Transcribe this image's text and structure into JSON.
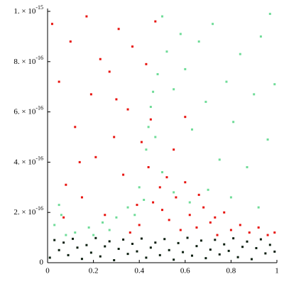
{
  "chart_data": {
    "type": "scatter",
    "xlim": [
      0,
      1
    ],
    "ylim": [
      0,
      1e-15
    ],
    "xticks": [
      0,
      0.2,
      0.4,
      0.6,
      0.8,
      1
    ],
    "yticks": [
      0,
      {
        "value": 2e-16,
        "label": "2. × 10",
        "exponent": "-16"
      },
      {
        "value": 4e-16,
        "label": "4. × 10",
        "exponent": "-16"
      },
      {
        "value": 6e-16,
        "label": "6. × 10",
        "exponent": "-16"
      },
      {
        "value": 8e-16,
        "label": "8. × 10",
        "exponent": "-16"
      },
      {
        "value": 1e-15,
        "label": "1. × 10",
        "exponent": "-15"
      }
    ],
    "series": [
      {
        "color": "#e8140f",
        "x": [
          0.02,
          0.05,
          0.08,
          0.1,
          0.12,
          0.15,
          0.17,
          0.19,
          0.21,
          0.23,
          0.25,
          0.27,
          0.29,
          0.31,
          0.33,
          0.35,
          0.37,
          0.39,
          0.41,
          0.43,
          0.45,
          0.47,
          0.49,
          0.4,
          0.36,
          0.5,
          0.53,
          0.56,
          0.58,
          0.6,
          0.62,
          0.65,
          0.68,
          0.71,
          0.74,
          0.77,
          0.8,
          0.84,
          0.88,
          0.92,
          0.96,
          0.99,
          0.55,
          0.6,
          0.07,
          0.14,
          0.3,
          0.44,
          0.46,
          0.52,
          0.66,
          0.73
        ],
        "y": [
          9.5e-16,
          7.2e-16,
          3.1e-16,
          8.8e-16,
          5.4e-16,
          2.6e-16,
          9.8e-16,
          6.7e-16,
          4.2e-16,
          8.1e-16,
          1.9e-16,
          7.6e-16,
          5e-16,
          9.3e-16,
          3.5e-16,
          6.1e-16,
          8.6e-16,
          2.3e-16,
          4.8e-16,
          7.9e-16,
          5.7e-16,
          9.6e-16,
          3e-16,
          1.5e-16,
          1.2e-16,
          2.1e-16,
          1.7e-16,
          2.6e-16,
          1.3e-16,
          3.2e-16,
          1.9e-16,
          1.4e-16,
          2.2e-16,
          1.6e-16,
          1.1e-16,
          2e-16,
          1.3e-16,
          1.5e-16,
          1.2e-16,
          1.4e-16,
          1.1e-16,
          1.2e-16,
          4.5e-16,
          5.8e-16,
          1.8e-16,
          4e-16,
          6.5e-16,
          3.8e-16,
          2.4e-16,
          3.4e-16,
          2.7e-16,
          1.8e-16
        ]
      },
      {
        "color": "#6fdc98",
        "x": [
          0.03,
          0.05,
          0.06,
          0.08,
          0.12,
          0.18,
          0.24,
          0.3,
          0.35,
          0.4,
          0.43,
          0.45,
          0.47,
          0.48,
          0.5,
          0.52,
          0.55,
          0.58,
          0.6,
          0.63,
          0.66,
          0.69,
          0.72,
          0.75,
          0.78,
          0.81,
          0.84,
          0.87,
          0.9,
          0.93,
          0.96,
          0.99,
          0.5,
          0.55,
          0.62,
          0.7,
          0.8,
          0.92,
          0.42,
          0.38,
          0.27,
          0.2,
          0.97,
          0.46,
          0.44
        ],
        "y": [
          1.5e-16,
          2.3e-16,
          1.9e-16,
          1.1e-16,
          1.2e-16,
          1.4e-16,
          1.6e-16,
          1.8e-16,
          2.2e-16,
          3e-16,
          4.5e-16,
          6.2e-16,
          5e-16,
          7.5e-16,
          9.8e-16,
          8.4e-16,
          6.9e-16,
          9.1e-16,
          7.7e-16,
          5.3e-16,
          8.8e-16,
          6.4e-16,
          9.5e-16,
          4.1e-16,
          7.2e-16,
          5.6e-16,
          8.3e-16,
          3.8e-16,
          6.7e-16,
          9e-16,
          4.9e-16,
          7.1e-16,
          3.6e-16,
          2.8e-16,
          2.4e-16,
          2.9e-16,
          2.6e-16,
          2.2e-16,
          2.5e-16,
          1.9e-16,
          1.3e-16,
          1.1e-16,
          9.9e-16,
          6.8e-16,
          5.4e-16
        ]
      },
      {
        "color": "#0c1f10",
        "x": [
          0.01,
          0.03,
          0.05,
          0.07,
          0.09,
          0.11,
          0.13,
          0.15,
          0.17,
          0.19,
          0.21,
          0.23,
          0.25,
          0.27,
          0.29,
          0.31,
          0.33,
          0.35,
          0.37,
          0.39,
          0.41,
          0.43,
          0.45,
          0.47,
          0.49,
          0.51,
          0.53,
          0.55,
          0.57,
          0.59,
          0.61,
          0.63,
          0.65,
          0.67,
          0.69,
          0.71,
          0.73,
          0.75,
          0.77,
          0.79,
          0.81,
          0.83,
          0.85,
          0.87,
          0.89,
          0.91,
          0.93,
          0.95,
          0.97,
          0.99
        ],
        "y": [
          2e-17,
          9e-17,
          5e-17,
          8e-17,
          3e-17,
          9.5e-17,
          6e-17,
          1.5e-17,
          7e-17,
          4e-17,
          9.8e-17,
          2.5e-17,
          6.5e-17,
          8.5e-17,
          1e-17,
          5.5e-17,
          9.2e-17,
          3.5e-17,
          7.5e-17,
          4.5e-17,
          9.6e-17,
          2e-17,
          6e-17,
          8e-17,
          3e-17,
          9.4e-17,
          5e-17,
          1.2e-17,
          7.8e-17,
          4.2e-17,
          9.9e-17,
          2.8e-17,
          6.6e-17,
          8.8e-17,
          1.8e-17,
          5.2e-17,
          9.1e-17,
          3.3e-17,
          7.3e-17,
          4.7e-17,
          9.7e-17,
          2.2e-17,
          6.3e-17,
          8.4e-17,
          1.4e-17,
          5.8e-17,
          9.3e-17,
          3.7e-17,
          7.1e-17,
          4.4e-17
        ]
      }
    ]
  }
}
